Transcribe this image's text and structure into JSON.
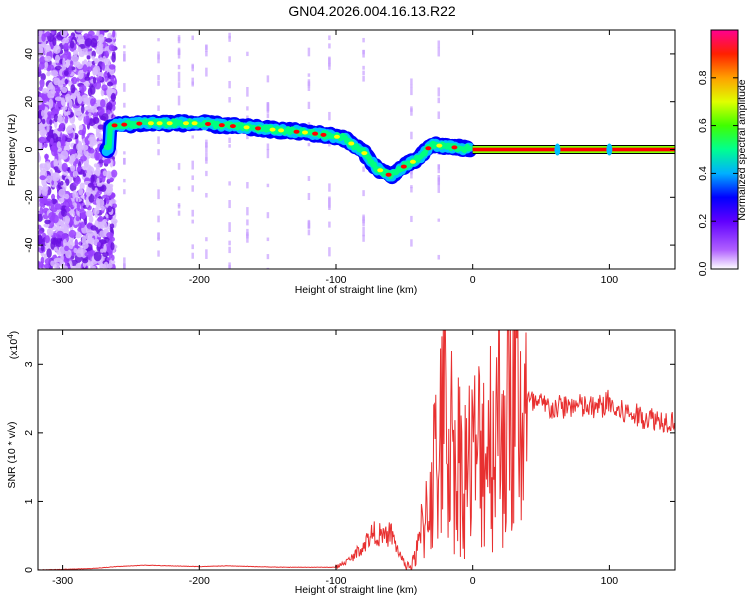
{
  "title": "GN04.2026.004.16.13.R22",
  "colors": {
    "snr_line": "#e83030",
    "frame": "#000000"
  },
  "chart_data": [
    {
      "type": "heatmap",
      "name": "spectrogram",
      "xlabel": "Height of straight line (km)",
      "ylabel": "Frequency (Hz)",
      "xlim": [
        -318,
        148
      ],
      "ylim": [
        -50,
        50
      ],
      "xticks": [
        -300,
        -200,
        -100,
        0,
        100
      ],
      "xtick_labels": [
        "-300",
        "-200",
        "-100",
        "0",
        "100"
      ],
      "yticks": [
        -40,
        -20,
        0,
        20,
        40
      ],
      "ytick_labels": [
        "-40",
        "-20",
        "0",
        "20",
        "40"
      ],
      "colorbar": {
        "label": "Normalized spectral amplitude",
        "range": [
          0,
          1
        ],
        "ticks": [
          0,
          0.2,
          0.4,
          0.6,
          0.8
        ],
        "tick_labels": [
          "0.0",
          "0.2",
          "0.4",
          "0.6",
          "0.8"
        ],
        "colormap": [
          "#ffffff",
          "#a000ff",
          "#0000ff",
          "#00c0ff",
          "#00ff80",
          "#80ff00",
          "#ffff00",
          "#ff8000",
          "#ff0000",
          "#ff00a0"
        ]
      },
      "ridge": [
        {
          "x": -265,
          "y": 10
        },
        {
          "x": -240,
          "y": 11
        },
        {
          "x": -200,
          "y": 11
        },
        {
          "x": -160,
          "y": 9
        },
        {
          "x": -120,
          "y": 7
        },
        {
          "x": -95,
          "y": 5
        },
        {
          "x": -80,
          "y": -1
        },
        {
          "x": -70,
          "y": -8
        },
        {
          "x": -60,
          "y": -11
        },
        {
          "x": -50,
          "y": -7
        },
        {
          "x": -40,
          "y": -4
        },
        {
          "x": -30,
          "y": 2
        },
        {
          "x": -15,
          "y": 1
        },
        {
          "x": 0,
          "y": 0
        },
        {
          "x": 148,
          "y": 0
        }
      ]
    },
    {
      "type": "line",
      "name": "snr",
      "xlabel": "Height of straight line (km)",
      "ylabel": "SNR (10 * v/v)",
      "yscale_label_base": "(x10",
      "yscale_label_exp": "4",
      "yscale_label_close": ")",
      "xlim": [
        -318,
        148
      ],
      "ylim": [
        0,
        3.5
      ],
      "xticks": [
        -300,
        -200,
        -100,
        0,
        100
      ],
      "xtick_labels": [
        "-300",
        "-200",
        "-100",
        "0",
        "100"
      ],
      "yticks": [
        0,
        1,
        2,
        3
      ],
      "ytick_labels": [
        "0",
        "1",
        "2",
        "3"
      ],
      "series": [
        {
          "color": "#e83030",
          "x": [
            -318,
            -280,
            -260,
            -240,
            -220,
            -200,
            -180,
            -160,
            -140,
            -120,
            -100,
            -90,
            -80,
            -75,
            -70,
            -65,
            -60,
            -55,
            -50,
            -45,
            -40,
            -35,
            -30,
            -25,
            -20,
            -15,
            -10,
            -5,
            0,
            10,
            20,
            30,
            40,
            50,
            60,
            70,
            80,
            90,
            100,
            105,
            110,
            120,
            130,
            140,
            148
          ],
          "y": [
            0.0,
            0.02,
            0.05,
            0.07,
            0.06,
            0.05,
            0.06,
            0.05,
            0.04,
            0.04,
            0.04,
            0.15,
            0.35,
            0.5,
            0.55,
            0.45,
            0.55,
            0.3,
            0.1,
            0.05,
            0.3,
            0.8,
            1.3,
            1.7,
            2.2,
            1.8,
            1.6,
            1.5,
            1.6,
            1.9,
            2.2,
            2.35,
            2.45,
            2.4,
            2.35,
            2.4,
            2.38,
            2.35,
            2.45,
            2.3,
            2.3,
            2.25,
            2.22,
            2.18,
            2.18
          ]
        }
      ]
    }
  ]
}
